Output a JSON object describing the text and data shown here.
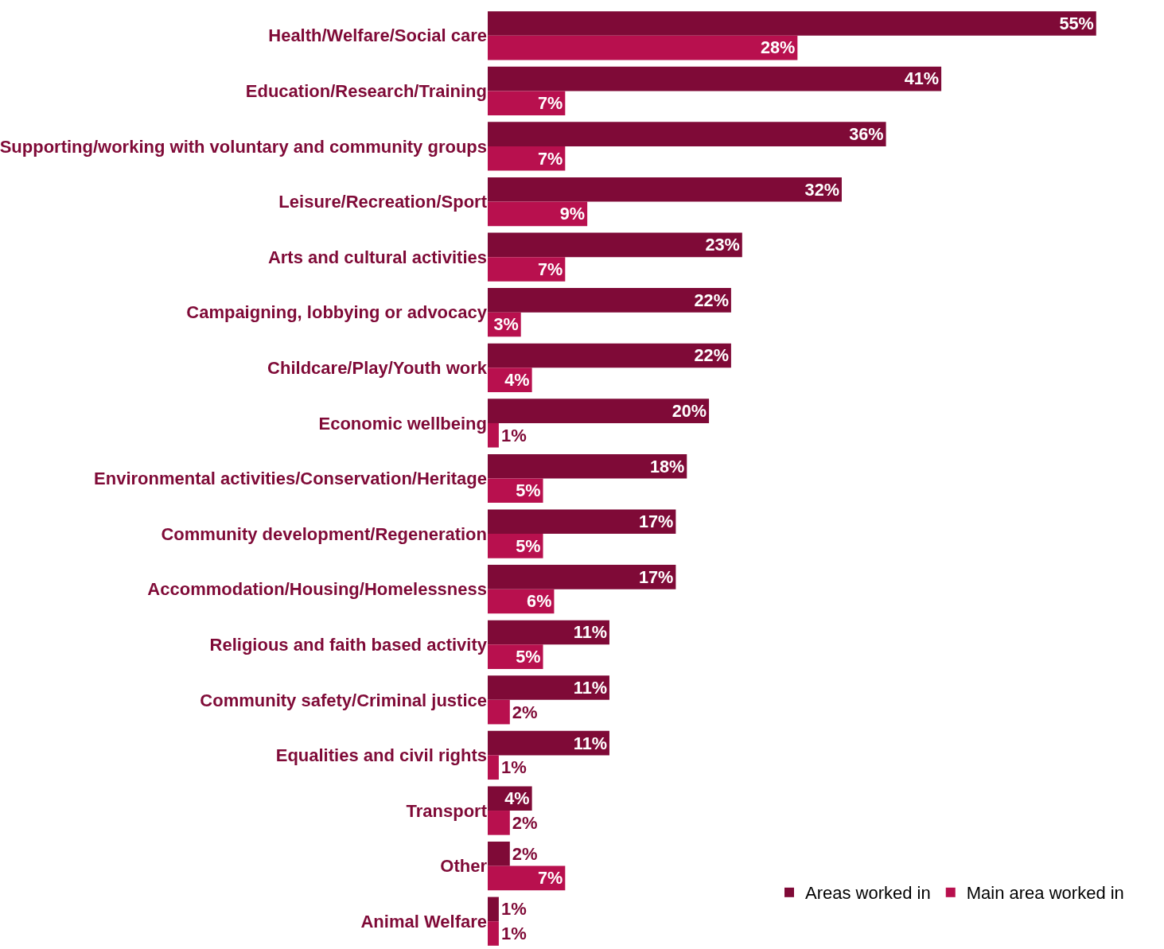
{
  "chart_data": {
    "type": "bar",
    "orientation": "horizontal",
    "categories": [
      "Health/Welfare/Social care",
      "Education/Research/Training",
      "Supporting/working with voluntary and community groups",
      "Leisure/Recreation/Sport",
      "Arts and cultural activities",
      "Campaigning, lobbying or advocacy",
      "Childcare/Play/Youth work",
      "Economic wellbeing",
      "Environmental activities/Conservation/Heritage",
      "Community development/Regeneration",
      "Accommodation/Housing/Homelessness",
      "Religious and faith based activity",
      "Community safety/Criminal justice",
      "Equalities and civil rights",
      "Transport",
      "Other",
      "Animal Welfare"
    ],
    "series": [
      {
        "name": "Areas worked in",
        "color": "#7f0a37",
        "values": [
          55,
          41,
          36,
          32,
          23,
          22,
          22,
          20,
          18,
          17,
          17,
          11,
          11,
          11,
          4,
          2,
          1
        ],
        "value_labels": [
          "55%",
          "41%",
          "36%",
          "32%",
          "23%",
          "22%",
          "22%",
          "20%",
          "18%",
          "17%",
          "17%",
          "11%",
          "11%",
          "11%",
          "4%",
          "2%",
          "1%"
        ]
      },
      {
        "name": "Main area worked in",
        "color": "#b8104e",
        "values": [
          28,
          7,
          7,
          9,
          7,
          3,
          4,
          1,
          5,
          5,
          6,
          5,
          2,
          1,
          2,
          7,
          1
        ],
        "value_labels": [
          "28%",
          "7%",
          "7%",
          "9%",
          "7%",
          "3%",
          "4%",
          "1%",
          "5%",
          "5%",
          "6%",
          "5%",
          "2%",
          "1%",
          "2%",
          "7%",
          "1%"
        ]
      }
    ],
    "legend": "bottom right",
    "tick_labels": "y",
    "grid": false
  }
}
